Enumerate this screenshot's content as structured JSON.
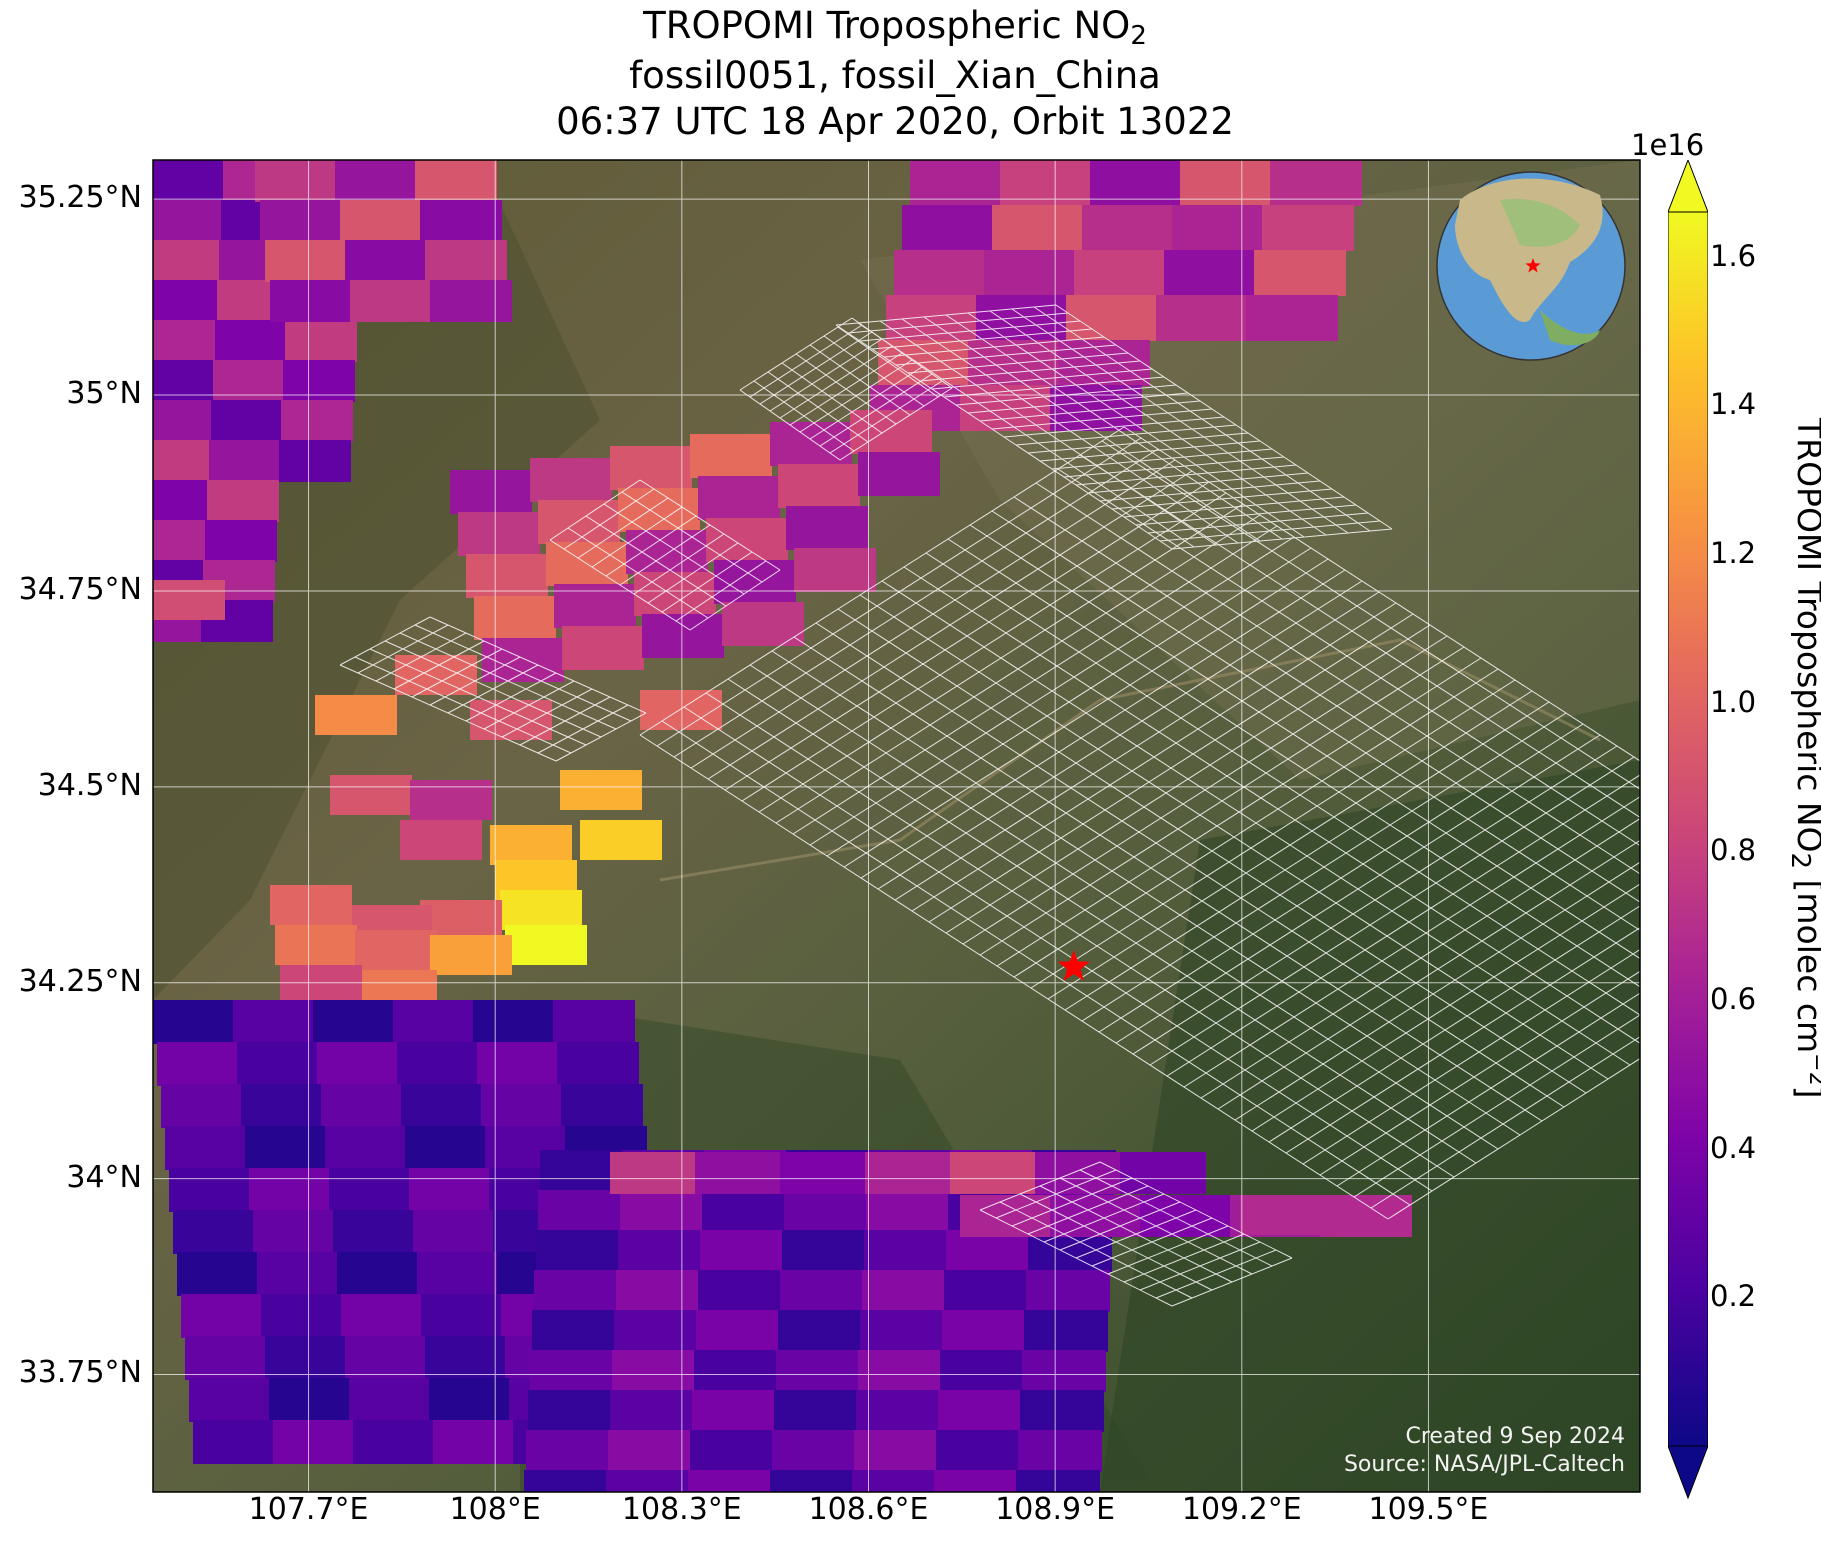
{
  "title": {
    "line1_prefix": "TROPOMI Tropospheric NO",
    "line1_sub": "2",
    "line2": "fossil0051, fossil_Xian_China",
    "line3": "06:37 UTC 18 Apr 2020, Orbit 13022"
  },
  "map": {
    "extent": {
      "lon_min": 107.45,
      "lon_max": 109.84,
      "lat_min": 33.6,
      "lat_max": 35.3
    },
    "lat_ticks": [
      {
        "value": 35.25,
        "label": "35.25°N"
      },
      {
        "value": 35.0,
        "label": "35°N"
      },
      {
        "value": 34.75,
        "label": "34.75°N"
      },
      {
        "value": 34.5,
        "label": "34.5°N"
      },
      {
        "value": 34.25,
        "label": "34.25°N"
      },
      {
        "value": 34.0,
        "label": "34°N"
      },
      {
        "value": 33.75,
        "label": "33.75°N"
      }
    ],
    "lon_ticks": [
      {
        "value": 107.7,
        "label": "107.7°E"
      },
      {
        "value": 108.0,
        "label": "108°E"
      },
      {
        "value": 108.3,
        "label": "108.3°E"
      },
      {
        "value": 108.6,
        "label": "108.6°E"
      },
      {
        "value": 108.9,
        "label": "108.9°E"
      },
      {
        "value": 109.2,
        "label": "109.2°E"
      },
      {
        "value": 109.5,
        "label": "109.5°E"
      }
    ],
    "target_marker": {
      "lon": 108.93,
      "lat": 34.27,
      "symbol": "star",
      "color": "#ff0000"
    },
    "gridline_color": "#ffffff"
  },
  "colorbar": {
    "exponent_label": "1e16",
    "label_prefix": "TROPOMI Tropospheric NO",
    "label_sub": "2",
    "label_suffix": " [molec cm",
    "label_sup": "−2",
    "label_end": "]",
    "min": 0.0,
    "max": 1.66,
    "ticks": [
      "0.2",
      "0.4",
      "0.6",
      "0.8",
      "1.0",
      "1.2",
      "1.4",
      "1.6"
    ],
    "colormap": "plasma",
    "extend": "both"
  },
  "credit": {
    "line1": "Created 9 Sep 2024",
    "line2": "Source: NASA/JPL-Caltech"
  }
}
